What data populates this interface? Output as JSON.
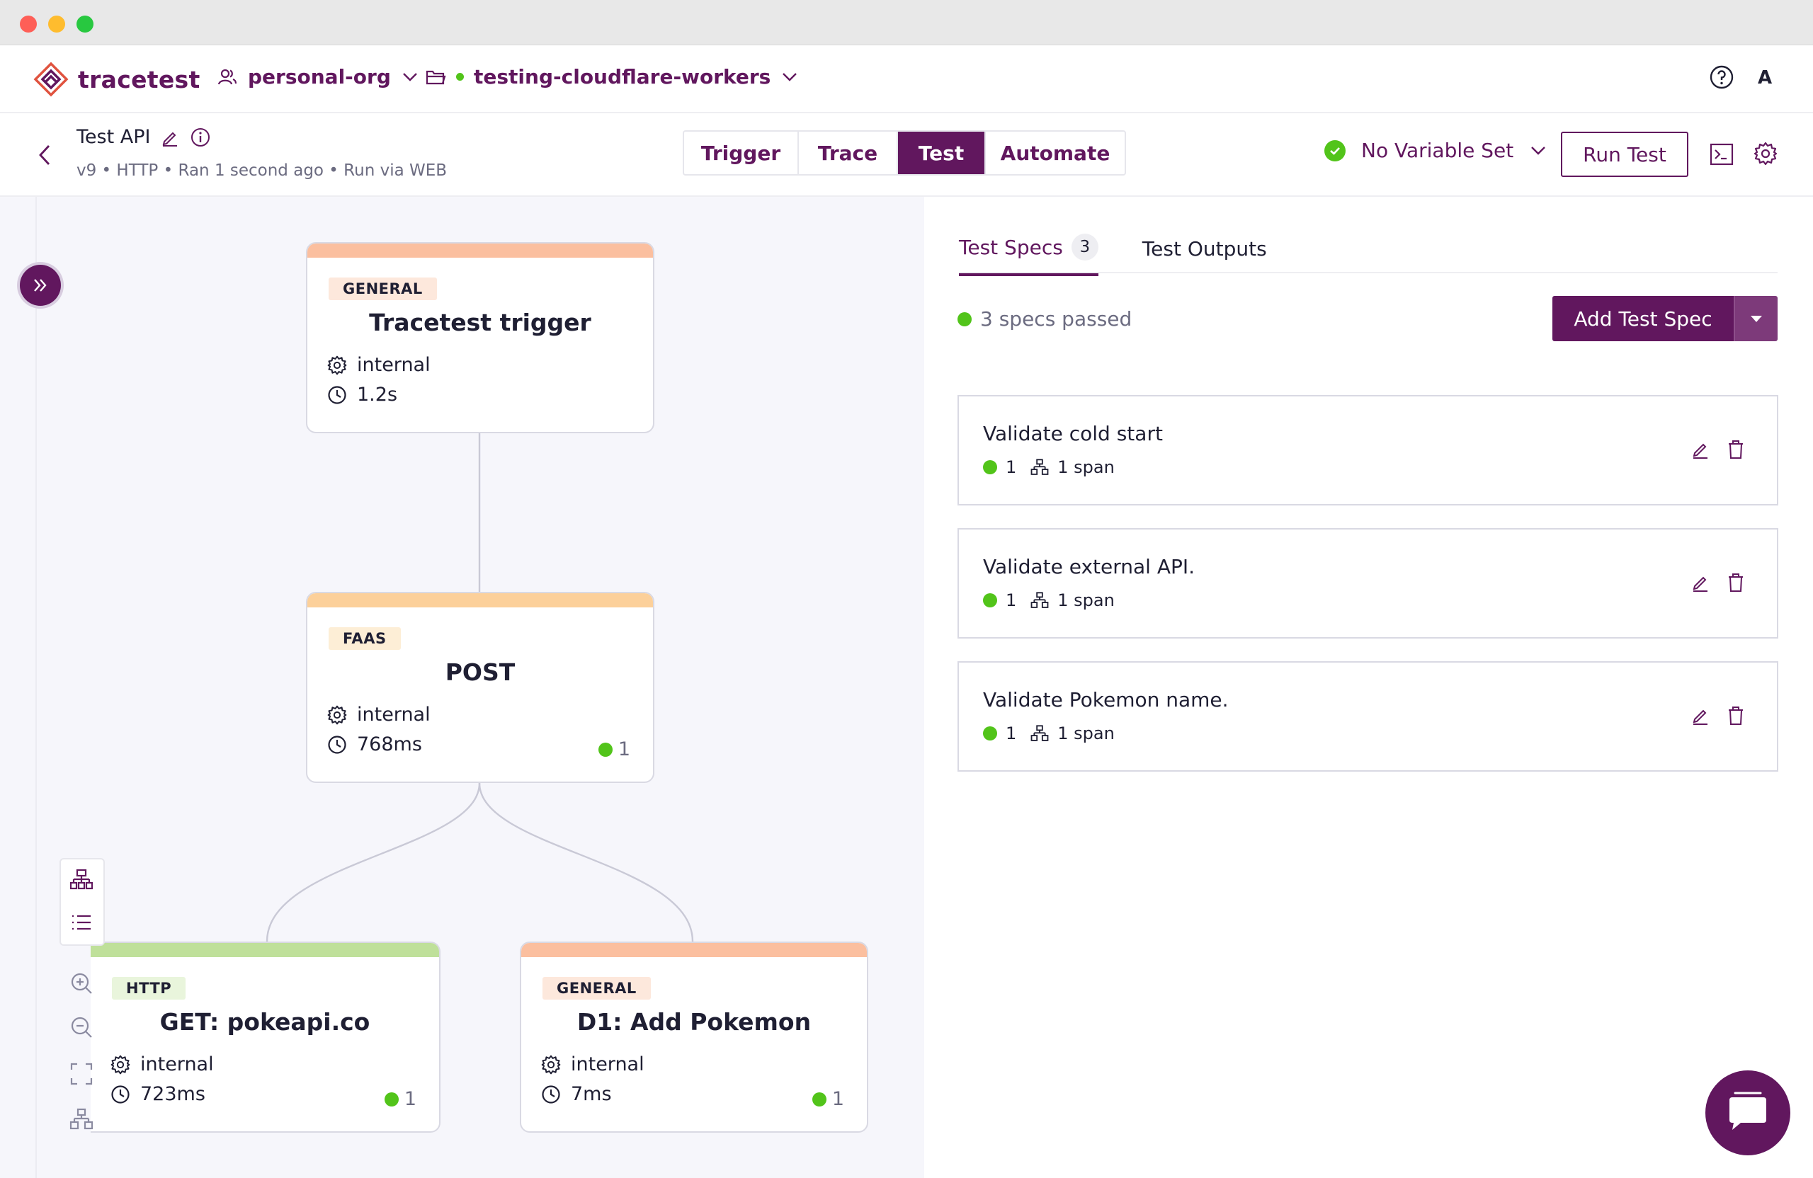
{
  "app": {
    "brand": "tracetest",
    "org": "personal-org",
    "environment": "testing-cloudflare-workers",
    "avatar_letter": "A"
  },
  "test": {
    "title": "Test API",
    "meta": "v9 • HTTP • Ran 1 second ago • Run via WEB"
  },
  "tabs": [
    "Trigger",
    "Trace",
    "Test",
    "Automate"
  ],
  "active_tab": "Test",
  "toolbar": {
    "variable_set": "No Variable Set",
    "run_button": "Run Test"
  },
  "graph": {
    "nodes": [
      {
        "badge": "GENERAL",
        "title": "Tracetest trigger",
        "kind": "internal",
        "duration": "1.2s",
        "count": ""
      },
      {
        "badge": "FAAS",
        "title": "POST",
        "kind": "internal",
        "duration": "768ms",
        "count": "1"
      },
      {
        "badge": "HTTP",
        "title": "GET: pokeapi.co",
        "kind": "internal",
        "duration": "723ms",
        "count": "1"
      },
      {
        "badge": "GENERAL",
        "title": "D1: Add Pokemon",
        "kind": "internal",
        "duration": "7ms",
        "count": "1"
      }
    ]
  },
  "right": {
    "tab_specs": "Test Specs",
    "spec_count": "3",
    "tab_outputs": "Test Outputs",
    "status": "3 specs passed",
    "add_spec": "Add Test Spec",
    "specs": [
      {
        "title": "Validate cold start",
        "passed": "1",
        "spans": "1 span"
      },
      {
        "title": "Validate external API.",
        "passed": "1",
        "spans": "1 span"
      },
      {
        "title": "Validate Pokemon name.",
        "passed": "1",
        "spans": "1 span"
      }
    ]
  },
  "colors": {
    "brand": "#61175e",
    "success": "#52c41a",
    "general_bar": "#fbbf9f",
    "faas_bar": "#fcd09a",
    "http_bar": "#bfe09a"
  }
}
